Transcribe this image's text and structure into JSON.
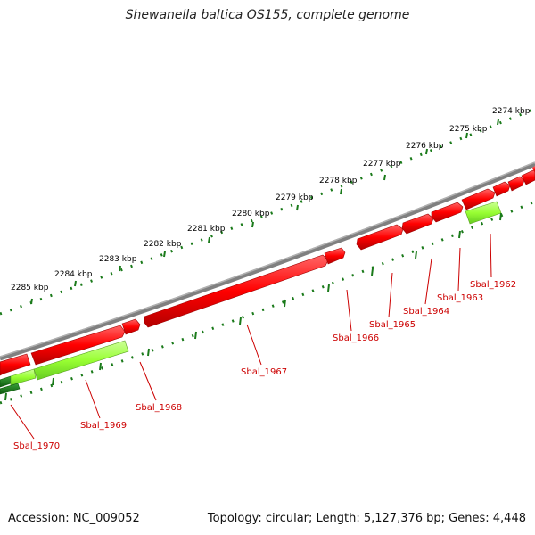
{
  "title": "Shewanella baltica OS155, complete genome",
  "footer": {
    "accession": "Accession: NC_009052",
    "topology": "Topology: circular; Length: 5,127,376 bp; Genes: 4,448"
  },
  "ruler": {
    "ticks": [
      "2274 kbp",
      "2275 kbp",
      "2276 kbp",
      "2277 kbp",
      "2278 kbp",
      "2279 kbp",
      "2280 kbp",
      "2281 kbp",
      "2282 kbp",
      "2283 kbp",
      "2284 kbp",
      "2285 kbp"
    ]
  },
  "genes": {
    "labels": [
      "Sbal_1962",
      "Sbal_1963",
      "Sbal_1964",
      "Sbal_1965",
      "Sbal_1966",
      "Sbal_1967",
      "Sbal_1968",
      "Sbal_1969",
      "Sbal_1970"
    ]
  },
  "colors": {
    "gene_red": "#ff0000",
    "gene_green": "#99ff33",
    "gene_dark_green": "#1a7a1a",
    "label_red": "#cc0000",
    "tick_green": "#1a7a1a",
    "backbone": "#808080"
  }
}
